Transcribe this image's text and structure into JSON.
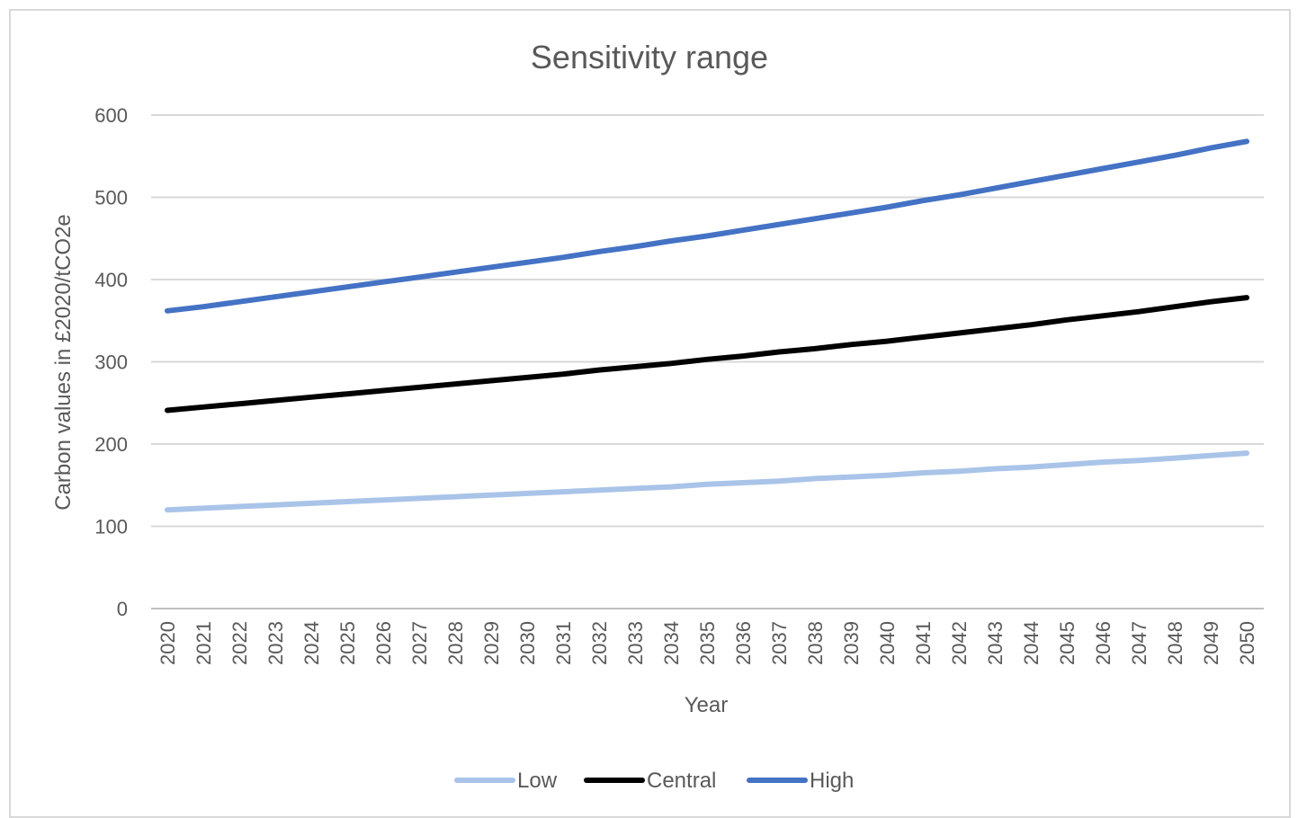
{
  "chart_data": {
    "type": "line",
    "title": "Sensitivity range",
    "xlabel": "Year",
    "ylabel": "Carbon values in £2020/tCO2e",
    "ylim": [
      0,
      600
    ],
    "yticks": [
      0,
      100,
      200,
      300,
      400,
      500,
      600
    ],
    "grid": true,
    "legend_position": "bottom",
    "x": [
      2020,
      2021,
      2022,
      2023,
      2024,
      2025,
      2026,
      2027,
      2028,
      2029,
      2030,
      2031,
      2032,
      2033,
      2034,
      2035,
      2036,
      2037,
      2038,
      2039,
      2040,
      2041,
      2042,
      2043,
      2044,
      2045,
      2046,
      2047,
      2048,
      2049,
      2050
    ],
    "series": [
      {
        "name": "Low",
        "color": "#a9c4e8",
        "values": [
          120,
          122,
          124,
          126,
          128,
          130,
          132,
          134,
          136,
          138,
          140,
          142,
          144,
          146,
          148,
          151,
          153,
          155,
          158,
          160,
          162,
          165,
          167,
          170,
          172,
          175,
          178,
          180,
          183,
          186,
          189
        ]
      },
      {
        "name": "Central",
        "color": "#000000",
        "values": [
          241,
          245,
          249,
          253,
          257,
          261,
          265,
          269,
          273,
          277,
          281,
          285,
          290,
          294,
          298,
          303,
          307,
          312,
          316,
          321,
          325,
          330,
          335,
          340,
          345,
          351,
          356,
          361,
          367,
          373,
          378
        ]
      },
      {
        "name": "High",
        "color": "#4472c4",
        "values": [
          362,
          367,
          373,
          379,
          385,
          391,
          397,
          403,
          409,
          415,
          421,
          427,
          434,
          440,
          447,
          453,
          460,
          467,
          474,
          481,
          488,
          496,
          503,
          511,
          519,
          527,
          535,
          543,
          551,
          560,
          568
        ]
      }
    ]
  }
}
